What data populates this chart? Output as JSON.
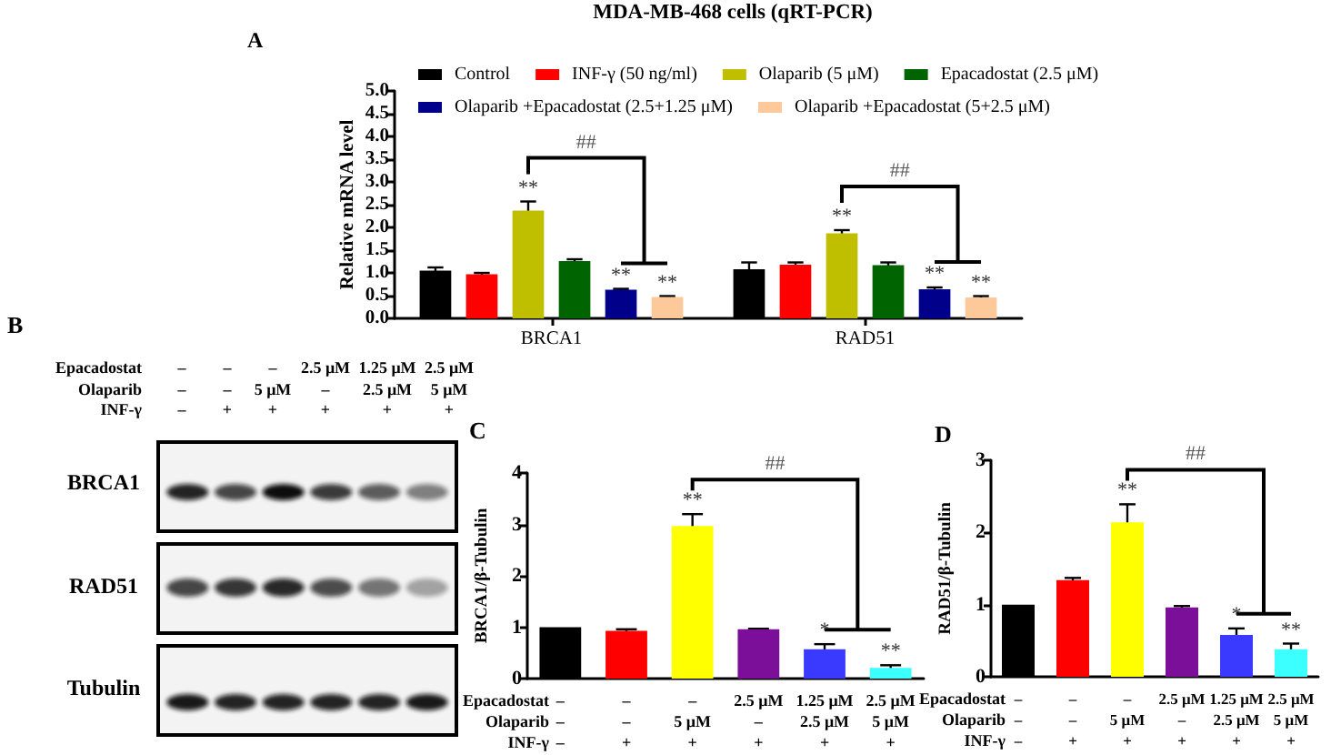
{
  "chart_data": [
    {
      "type": "bar",
      "title": "MDA-MB-468 cells (qRT-PCR)",
      "subtitle": "A",
      "ylabel": "Relative mRNA level",
      "categories": [
        "BRCA1",
        "RAD51"
      ],
      "series": [
        {
          "name": "Control",
          "color": "#000000",
          "values": [
            1.05,
            1.08
          ],
          "errors": [
            0.07,
            0.15
          ]
        },
        {
          "name": "INF-γ (50 ng/ml)",
          "color": "#ff0000",
          "values": [
            0.97,
            1.18
          ],
          "errors": [
            0.03,
            0.05
          ]
        },
        {
          "name": "Olaparib (5 μM)",
          "color": "#bfbf00",
          "values": [
            2.37,
            1.87
          ],
          "errors": [
            0.2,
            0.07
          ],
          "value_labels": [
            "**",
            "**"
          ]
        },
        {
          "name": "Epacadostat (2.5 μM)",
          "color": "#006400",
          "values": [
            1.26,
            1.17
          ],
          "errors": [
            0.04,
            0.06
          ]
        },
        {
          "name": "Olaparib +Epacadostat (2.5+1.25 μM)",
          "color": "#00008b",
          "values": [
            0.63,
            0.64
          ],
          "errors": [
            0.02,
            0.04
          ],
          "value_labels": [
            "**",
            "**"
          ]
        },
        {
          "name": "Olaparib +Epacadostat (5+2.5 μM)",
          "color": "#fdc99a",
          "values": [
            0.47,
            0.46
          ],
          "errors": [
            0.02,
            0.03
          ],
          "value_labels": [
            "**",
            "**"
          ]
        }
      ],
      "ylim": [
        0,
        5
      ],
      "yticks": [
        {
          "value": 0,
          "label": "0.0"
        },
        0.5,
        {
          "value": 1,
          "label": "1.0"
        },
        1.5,
        {
          "value": 2,
          "label": "2.0"
        },
        2.5,
        {
          "value": 3,
          "label": "3.0"
        },
        3.5,
        {
          "value": 4,
          "label": "4.0"
        },
        4.5,
        {
          "value": 5,
          "label": "5.0"
        }
      ],
      "legend": "top",
      "annotations": [
        "##",
        "##"
      ]
    },
    {
      "type": "other",
      "title": "B",
      "categories": [
        "–\n–\n–",
        "–\n–\n+",
        "–\n5 μM\n+",
        "2.5 μM\n–\n+",
        "1.25 μM\n2.5 μM\n+",
        "2.5 μM\n5 μM\n+"
      ],
      "annotations": [
        "Epacadostat",
        "Olaparib",
        "INF-γ",
        "BRCA1",
        "RAD51",
        "Tubulin"
      ]
    },
    {
      "type": "bar",
      "title": "C",
      "ylabel": "BRCA1/β-Tubulin",
      "categories": [
        "–\n–\n–",
        "–\n–\n+",
        "–\n5 μM\n+",
        "2.5 μM\n–\n+",
        "1.25 μM\n2.5 μM\n+",
        "2.5 μM\n5 μM\n+"
      ],
      "values": [
        1.0,
        0.93,
        2.97,
        0.96,
        0.57,
        0.21
      ],
      "colors": [
        "#000000",
        "#ff0000",
        "#ffff00",
        "#7b0f99",
        "#3a3aff",
        "#3cffff"
      ],
      "errors": [
        null,
        0.03,
        0.23,
        0.01,
        0.1,
        0.05
      ],
      "value_labels": [
        null,
        null,
        "**",
        null,
        "*",
        "**"
      ],
      "ylim": [
        0,
        4
      ],
      "yticks": [
        0,
        1,
        2,
        3,
        4
      ],
      "annotations": [
        "Epacadostat",
        "Olaparib",
        "INF-γ",
        "##"
      ]
    },
    {
      "type": "bar",
      "title": "D",
      "ylabel": "RAD51/β-Tubulin",
      "categories": [
        "–\n–\n–",
        "–\n–\n+",
        "–\n5 μM\n+",
        "2.5 μM\n–\n+",
        "1.25 μM\n2.5 μM\n+",
        "2.5 μM\n5 μM\n+"
      ],
      "values": [
        1.0,
        1.34,
        2.14,
        0.96,
        0.58,
        0.38
      ],
      "colors": [
        "#000000",
        "#ff0000",
        "#ffff00",
        "#7b0f99",
        "#3a3aff",
        "#3cffff"
      ],
      "errors": [
        null,
        0.03,
        0.25,
        0.02,
        0.09,
        0.08
      ],
      "value_labels": [
        null,
        null,
        "**",
        null,
        "*",
        "**"
      ],
      "ylim": [
        0,
        3
      ],
      "yticks": [
        0,
        1,
        2,
        3
      ],
      "annotations": [
        "Epacadostat",
        "Olaparib",
        "INF-γ",
        "##"
      ]
    }
  ]
}
